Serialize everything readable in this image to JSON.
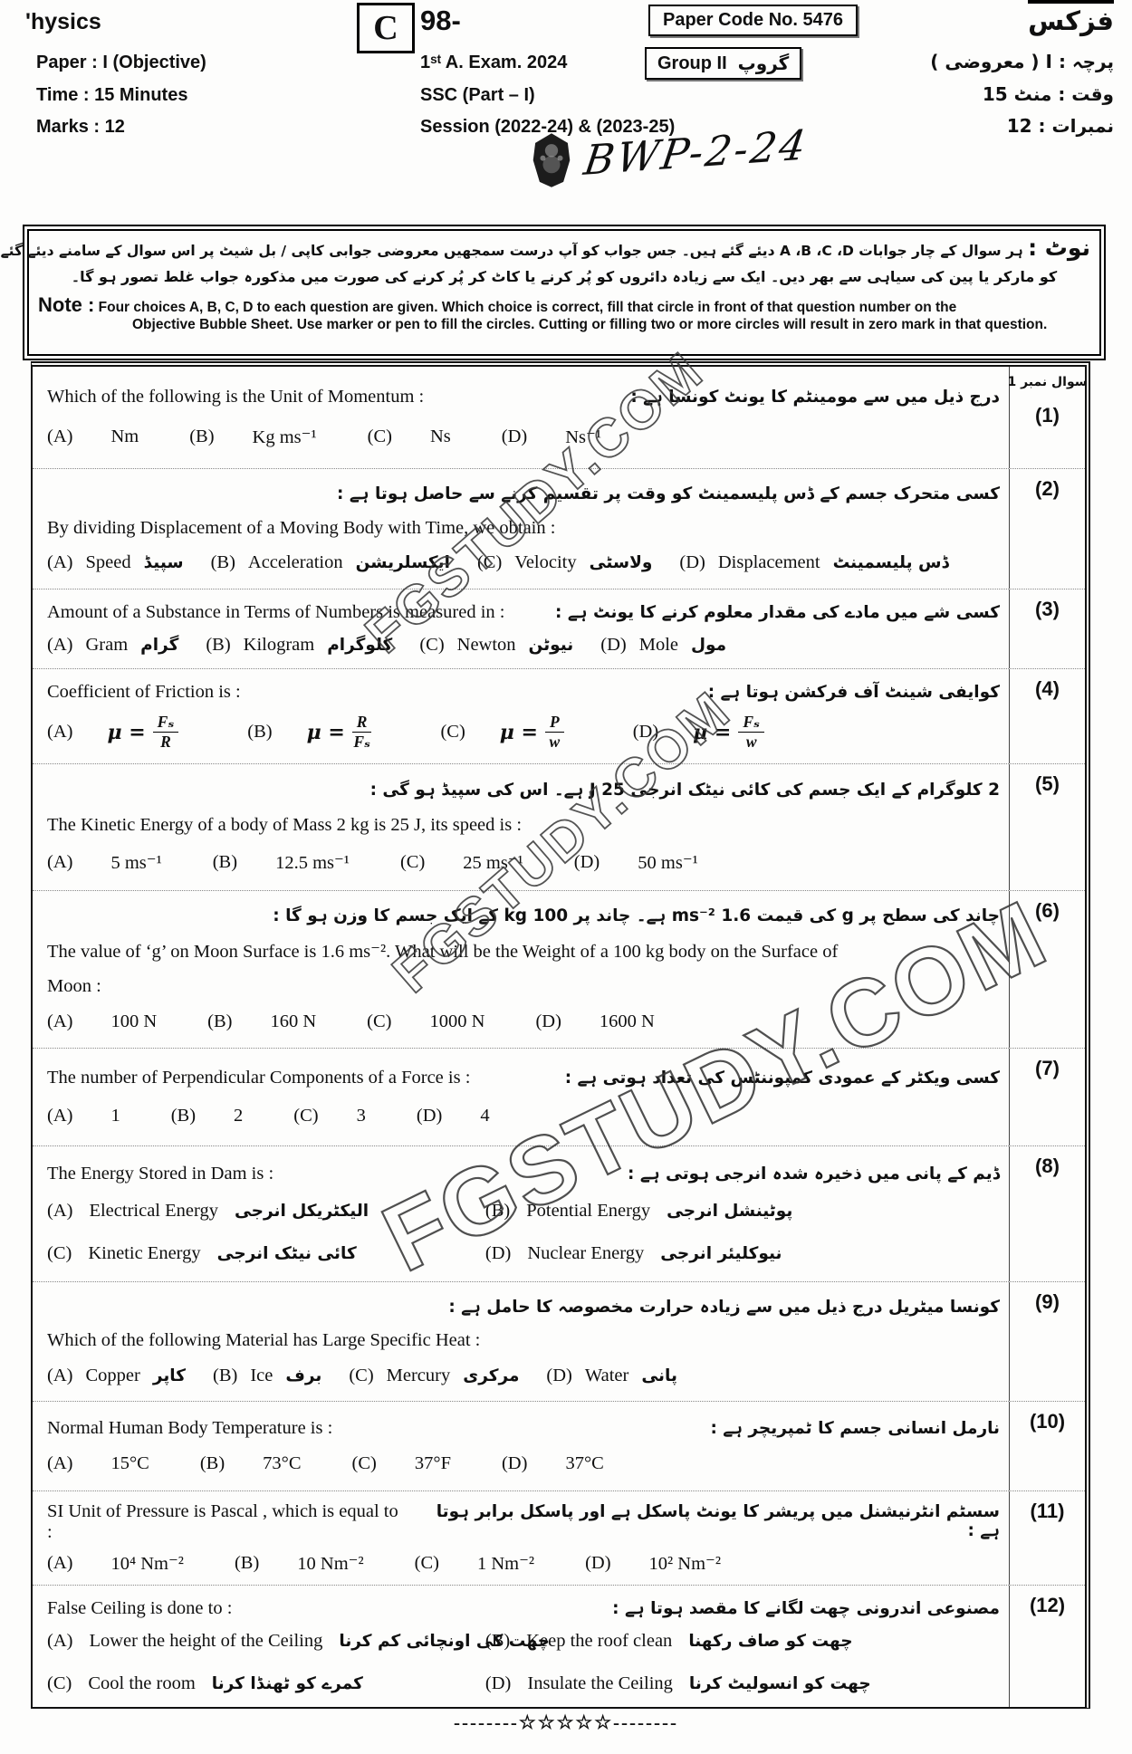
{
  "header": {
    "subject_en": "'hysics",
    "version_letter": "C",
    "code_prefix": "98-",
    "paper_code": "Paper Code No. 5476",
    "subject_ur": "فزکس",
    "paper_en": "Paper : I (Objective)",
    "exam": "1ˢᵗ A. Exam. 2024",
    "group_en": "Group II",
    "group_ur": "گروپ",
    "paper_ur": "پرچہ : I ( معروضی )",
    "time_en": "Time : 15 Minutes",
    "ssc": "SSC (Part – I)",
    "time_ur": "وقت : منٹ 15",
    "marks_en": "Marks : 12",
    "session": "Session (2022-24) & (2023-25)",
    "marks_ur": "نمبرات : 12",
    "handwritten": "BWP-2-24"
  },
  "note": {
    "ur_label": "نوٹ :",
    "ur_line1": "ہر سوال کے چار جوابات A ،B ،C ،D دیئے گئے ہیں۔ جس جواب کو آپ درست سمجھیں معروضی جوابی کاپی / بل شیٹ پر اس سوال کے سامنے دیئے گئے دائروں میں سے متعلقہ دائرہ",
    "ur_line2": "کو مارکر یا پین کی سیاہی سے بھر دیں۔ ایک سے زیادہ دائروں کو پُر کرنے یا کاٹ کر پُر کرنے کی صورت میں مذکورہ جواب غلط تصور ہو گا۔",
    "en_label": "Note :",
    "en_line1": "Four choices A, B, C, D to each question are given. Which choice is correct, fill that circle in front of that question number on the",
    "en_line2": "Objective Bubble Sheet. Use marker or pen to fill the circles. Cutting or filling two or more circles will result in zero mark in that question."
  },
  "watermark": {
    "text": "FGSTUDY.COM"
  },
  "footer": {
    "separator": "--------☆☆☆☆☆--------"
  },
  "table": {
    "first_col_header": "سوال نمبر 1",
    "questions": [
      {
        "num": "(1)",
        "lines": [
          {
            "t": "enur",
            "en": "Which of the following is the Unit of Momentum  :",
            "ur": "درج ذیل میں سے مومینٹم کا یونٹ کونسا ہے :"
          },
          {
            "t": "opts",
            "wide": true,
            "items": [
              {
                "l": "(A)",
                "en": "Nm"
              },
              {
                "l": "(B)",
                "en": "Kg ms⁻¹"
              },
              {
                "l": "(C)",
                "en": "Ns"
              },
              {
                "l": "(D)",
                "en": "Ns⁻¹"
              }
            ]
          }
        ]
      },
      {
        "num": "(2)",
        "lines": [
          {
            "t": "ur",
            "ur": "کسی متحرک جسم کے ڈس پلیسمینٹ کو وقت پر تقسیم کرنے سے حاصل ہوتا ہے :"
          },
          {
            "t": "en",
            "en": "By dividing Displacement of a Moving Body with Time, we obtain   :"
          },
          {
            "t": "opts",
            "items": [
              {
                "l": "(A)",
                "en": "Speed",
                "ur": "سپیڈ"
              },
              {
                "l": "(B)",
                "en": "Acceleration",
                "ur": "ایکسلریشن"
              },
              {
                "l": "(C)",
                "en": "Velocity",
                "ur": "ولاسٹی"
              },
              {
                "l": "(D)",
                "en": "Displacement",
                "ur": "ڈس پلیسمینٹ"
              }
            ]
          }
        ]
      },
      {
        "num": "(3)",
        "lines": [
          {
            "t": "enur",
            "en": "Amount of a Substance in Terms of Numbers is measured in  :",
            "ur": "کسی شے میں مادے کی مقدار معلوم کرنے کا یونٹ ہے :"
          },
          {
            "t": "opts",
            "items": [
              {
                "l": "(A)",
                "en": "Gram",
                "ur": "گرام"
              },
              {
                "l": "(B)",
                "en": "Kilogram",
                "ur": "کلوگرام"
              },
              {
                "l": "(C)",
                "en": "Newton",
                "ur": "نیوٹن"
              },
              {
                "l": "(D)",
                "en": "Mole",
                "ur": "مول"
              }
            ]
          }
        ]
      },
      {
        "num": "(4)",
        "lines": [
          {
            "t": "enur",
            "en": "Coefficient of Friction is  :",
            "ur": "کوایفی شینٹ آف فرکشن ہوتا ہے :"
          },
          {
            "t": "frac",
            "items": [
              {
                "l": "(A)",
                "num": "Fₛ",
                "den": "R"
              },
              {
                "l": "(B)",
                "num": "R",
                "den": "Fₛ"
              },
              {
                "l": "(C)",
                "num": "P",
                "den": "w"
              },
              {
                "l": "(D)",
                "num": "Fₛ",
                "den": "w"
              }
            ]
          }
        ]
      },
      {
        "num": "(5)",
        "lines": [
          {
            "t": "ur",
            "ur": "2 کلوگرام کے ایک جسم کی کائی نیٹک انرجی 25 J ہے۔ اس کی سپیڈ ہو گی :"
          },
          {
            "t": "en",
            "en": "The Kinetic Energy of a body of Mass 2 kg is 25 J, its speed is  :"
          },
          {
            "t": "opts",
            "wide": true,
            "items": [
              {
                "l": "(A)",
                "en": "5 ms⁻¹"
              },
              {
                "l": "(B)",
                "en": "12.5 ms⁻¹"
              },
              {
                "l": "(C)",
                "en": "25 ms⁻¹"
              },
              {
                "l": "(D)",
                "en": "50 ms⁻¹"
              }
            ]
          }
        ]
      },
      {
        "num": "(6)",
        "lines": [
          {
            "t": "ur",
            "ur": "چاند کی سطح پر g کی قیمت 1.6 ms⁻² ہے۔ چاند پر 100 kg کے ایک جسم کا وزن ہو گا :"
          },
          {
            "t": "en",
            "en": "The value of ‘g’ on Moon Surface is 1.6 ms⁻². What will be the Weight of a 100 kg body on the Surface of"
          },
          {
            "t": "en",
            "en": "Moon :"
          },
          {
            "t": "opts",
            "wide": true,
            "items": [
              {
                "l": "(A)",
                "en": "100 N"
              },
              {
                "l": "(B)",
                "en": "160 N"
              },
              {
                "l": "(C)",
                "en": "1000 N"
              },
              {
                "l": "(D)",
                "en": "1600 N"
              }
            ]
          }
        ]
      },
      {
        "num": "(7)",
        "lines": [
          {
            "t": "enur",
            "en": "The number of Perpendicular Components of a Force is   :",
            "ur": "کسی ویکٹر کے عمودی کمپوننٹس کی تعداد ہوتی ہے :"
          },
          {
            "t": "opts",
            "wide": true,
            "items": [
              {
                "l": "(A)",
                "en": "1"
              },
              {
                "l": "(B)",
                "en": "2"
              },
              {
                "l": "(C)",
                "en": "3"
              },
              {
                "l": "(D)",
                "en": "4"
              }
            ]
          }
        ]
      },
      {
        "num": "(8)",
        "lines": [
          {
            "t": "enur",
            "en": "The Energy Stored in Dam is  :",
            "ur": "ڈیم کے پانی میں ذخیرہ شدہ انرجی ہوتی ہے :"
          },
          {
            "t": "grid",
            "items": [
              {
                "l": "(A)",
                "en": "Electrical Energy",
                "ur": "الیکٹریکل انرجی"
              },
              {
                "l": "(B)",
                "en": "Potential Energy",
                "ur": "پوٹینشل انرجی"
              },
              {
                "l": "(C)",
                "en": "Kinetic Energy",
                "ur": "کائی نیٹک انرجی"
              },
              {
                "l": "(D)",
                "en": "Nuclear Energy",
                "ur": "نیوکلیئر انرجی"
              }
            ]
          }
        ]
      },
      {
        "num": "(9)",
        "lines": [
          {
            "t": "ur",
            "ur": "کونسا میٹریل درج ذیل میں سے زیادہ حرارت مخصوصہ کا حامل ہے :"
          },
          {
            "t": "en",
            "en": "Which of the following Material has Large Specific Heat   :"
          },
          {
            "t": "opts",
            "items": [
              {
                "l": "(A)",
                "en": "Copper",
                "ur": "کاپر"
              },
              {
                "l": "(B)",
                "en": "Ice",
                "ur": "برف"
              },
              {
                "l": "(C)",
                "en": "Mercury",
                "ur": "مرکری"
              },
              {
                "l": "(D)",
                "en": "Water",
                "ur": "پانی"
              }
            ]
          }
        ]
      },
      {
        "num": "(10)",
        "lines": [
          {
            "t": "enur",
            "en": "Normal Human Body Temperature is  :",
            "ur": "نارمل انسانی جسم کا ٹمپریچر ہے :"
          },
          {
            "t": "opts",
            "wide": true,
            "items": [
              {
                "l": "(A)",
                "en": "15°C"
              },
              {
                "l": "(B)",
                "en": "73°C"
              },
              {
                "l": "(C)",
                "en": "37°F"
              },
              {
                "l": "(D)",
                "en": "37°C"
              }
            ]
          }
        ]
      },
      {
        "num": "(11)",
        "lines": [
          {
            "t": "enur",
            "en": "SI Unit of Pressure is Pascal , which is equal to  :",
            "ur": "سسٹم انٹرنیشنل میں پریشر کا یونٹ پاسکل ہے اور پاسکل برابر ہوتا ہے :"
          },
          {
            "t": "opts",
            "wide": true,
            "items": [
              {
                "l": "(A)",
                "en": "10⁴ Nm⁻²"
              },
              {
                "l": "(B)",
                "en": "10 Nm⁻²"
              },
              {
                "l": "(C)",
                "en": "1 Nm⁻²"
              },
              {
                "l": "(D)",
                "en": "10² Nm⁻²"
              }
            ]
          }
        ]
      },
      {
        "num": "(12)",
        "lines": [
          {
            "t": "enur",
            "en": "False Ceiling is done to  :",
            "ur": "مصنوعی اندرونی چھت لگانے کا مقصد ہوتا ہے :"
          },
          {
            "t": "grid",
            "items": [
              {
                "l": "(A)",
                "en": "Lower the height of the Ceiling",
                "ur": "چھت کی اونچائی کم کرنا"
              },
              {
                "l": "(B)",
                "en": "Keep the roof clean",
                "ur": "چھت کو صاف رکھنا"
              },
              {
                "l": "(C)",
                "en": "Cool the room",
                "ur": "کمرے کو ٹھنڈا کرنا"
              },
              {
                "l": "(D)",
                "en": "Insulate the Ceiling",
                "ur": "چھت کو انسولیٹ کرنا"
              }
            ]
          }
        ]
      }
    ]
  }
}
